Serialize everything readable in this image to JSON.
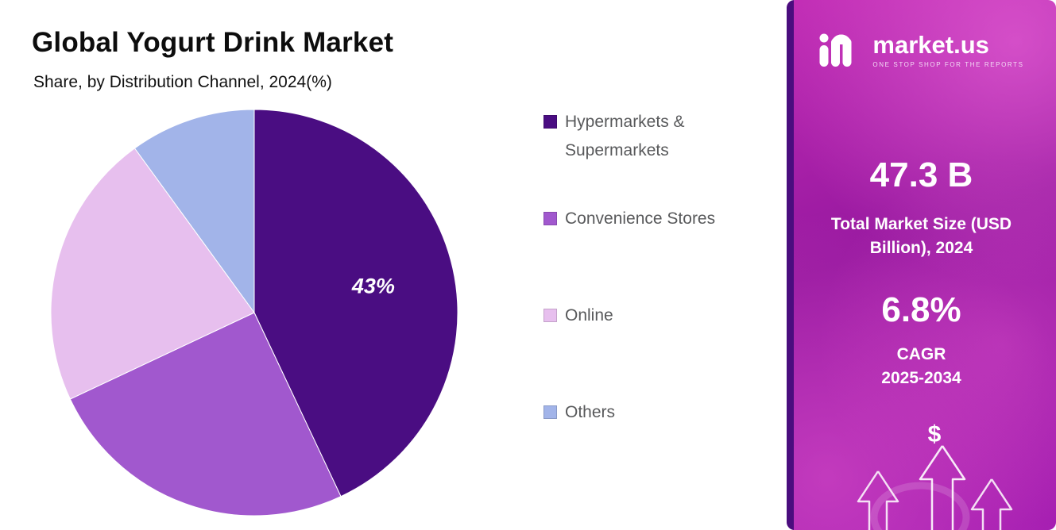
{
  "header": {
    "title": "Global Yogurt Drink Market",
    "subtitle": "Share, by Distribution Channel, 2024(%)"
  },
  "chart_data": {
    "type": "pie",
    "title": "Global Yogurt Drink Market",
    "subtitle": "Share, by Distribution Channel, 2024(%)",
    "categories": [
      "Hypermarkets & Supermarkets",
      "Convenience Stores",
      "Online",
      "Others"
    ],
    "values": [
      43,
      25,
      22,
      10
    ],
    "colors": [
      "#4a0d82",
      "#a158ce",
      "#e7bfee",
      "#a2b4e9"
    ],
    "data_labels": [
      "43%",
      "",
      "",
      ""
    ],
    "start_angle_deg": 0,
    "direction": "clockwise",
    "legend_position": "right"
  },
  "panel": {
    "logo_text": "market.us",
    "logo_tagline": "ONE STOP SHOP FOR THE REPORTS",
    "market_size_value": "47.3 B",
    "market_size_label": "Total Market Size (USD Billion), 2024",
    "cagr_value": "6.8%",
    "cagr_label": "CAGR",
    "cagr_period": "2025-2034",
    "dollar_sign": "$"
  }
}
